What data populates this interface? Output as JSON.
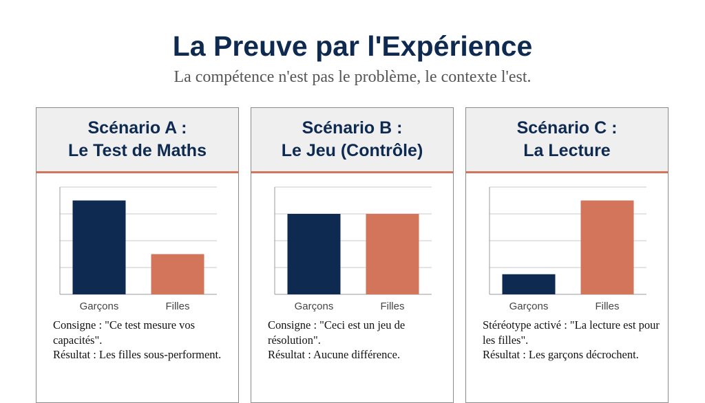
{
  "title": "La Preuve par l'Expérience",
  "subtitle": "La compétence n'est pas le problème, le contexte l'est.",
  "colors": {
    "navy": "#0f2a50",
    "orange": "#d2755a",
    "header_bg": "#efefef"
  },
  "cards": [
    {
      "heading_line1": "Scénario A :",
      "heading_line2": "Le Test de Maths",
      "caption_line1": "Consigne : \"Ce test mesure vos capacités\".",
      "caption_line2": "Résultat : Les filles sous-performent."
    },
    {
      "heading_line1": "Scénario B :",
      "heading_line2": "Le Jeu (Contrôle)",
      "caption_line1": "Consigne : \"Ceci est un jeu de résolution\".",
      "caption_line2": "Résultat : Aucune différence."
    },
    {
      "heading_line1": "Scénario C :",
      "heading_line2": "La Lecture",
      "caption_line1": "Stéréotype activé : \"La lecture est pour les filles\".",
      "caption_line2": "Résultat : Les garçons décrochent."
    }
  ],
  "chart_data": [
    {
      "type": "bar",
      "categories": [
        "Garçons",
        "Filles"
      ],
      "values": [
        3.5,
        1.5
      ],
      "ylim": [
        0,
        4
      ],
      "grid": true,
      "colors": [
        "#0f2a50",
        "#d2755a"
      ]
    },
    {
      "type": "bar",
      "categories": [
        "Garçons",
        "Filles"
      ],
      "values": [
        3.0,
        3.0
      ],
      "ylim": [
        0,
        4
      ],
      "grid": true,
      "colors": [
        "#0f2a50",
        "#d2755a"
      ]
    },
    {
      "type": "bar",
      "categories": [
        "Garçons",
        "Filles"
      ],
      "values": [
        0.75,
        3.5
      ],
      "ylim": [
        0,
        4
      ],
      "grid": true,
      "colors": [
        "#0f2a50",
        "#d2755a"
      ]
    }
  ]
}
